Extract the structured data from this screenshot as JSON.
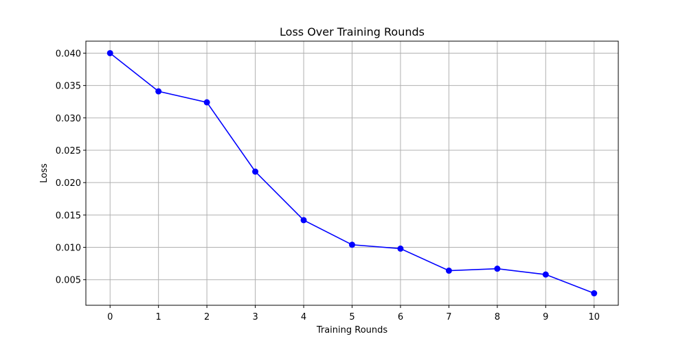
{
  "chart_data": {
    "type": "line",
    "title": "Loss Over Training Rounds",
    "xlabel": "Training Rounds",
    "ylabel": "Loss",
    "x": [
      0,
      1,
      2,
      3,
      4,
      5,
      6,
      7,
      8,
      9,
      10
    ],
    "series": [
      {
        "values": [
          0.04,
          0.0341,
          0.0324,
          0.0217,
          0.0142,
          0.0104,
          0.0098,
          0.0064,
          0.0067,
          0.0058,
          0.0029
        ],
        "color": "#0000ff",
        "marker": "circle"
      }
    ],
    "xticks": [
      "0",
      "1",
      "2",
      "3",
      "4",
      "5",
      "6",
      "7",
      "8",
      "9",
      "10"
    ],
    "yticks": [
      "0.005",
      "0.010",
      "0.015",
      "0.020",
      "0.025",
      "0.030",
      "0.035",
      "0.040"
    ],
    "xlim": [
      -0.5,
      10.5
    ],
    "ylim": [
      0.00105,
      0.04185
    ],
    "grid": true
  }
}
